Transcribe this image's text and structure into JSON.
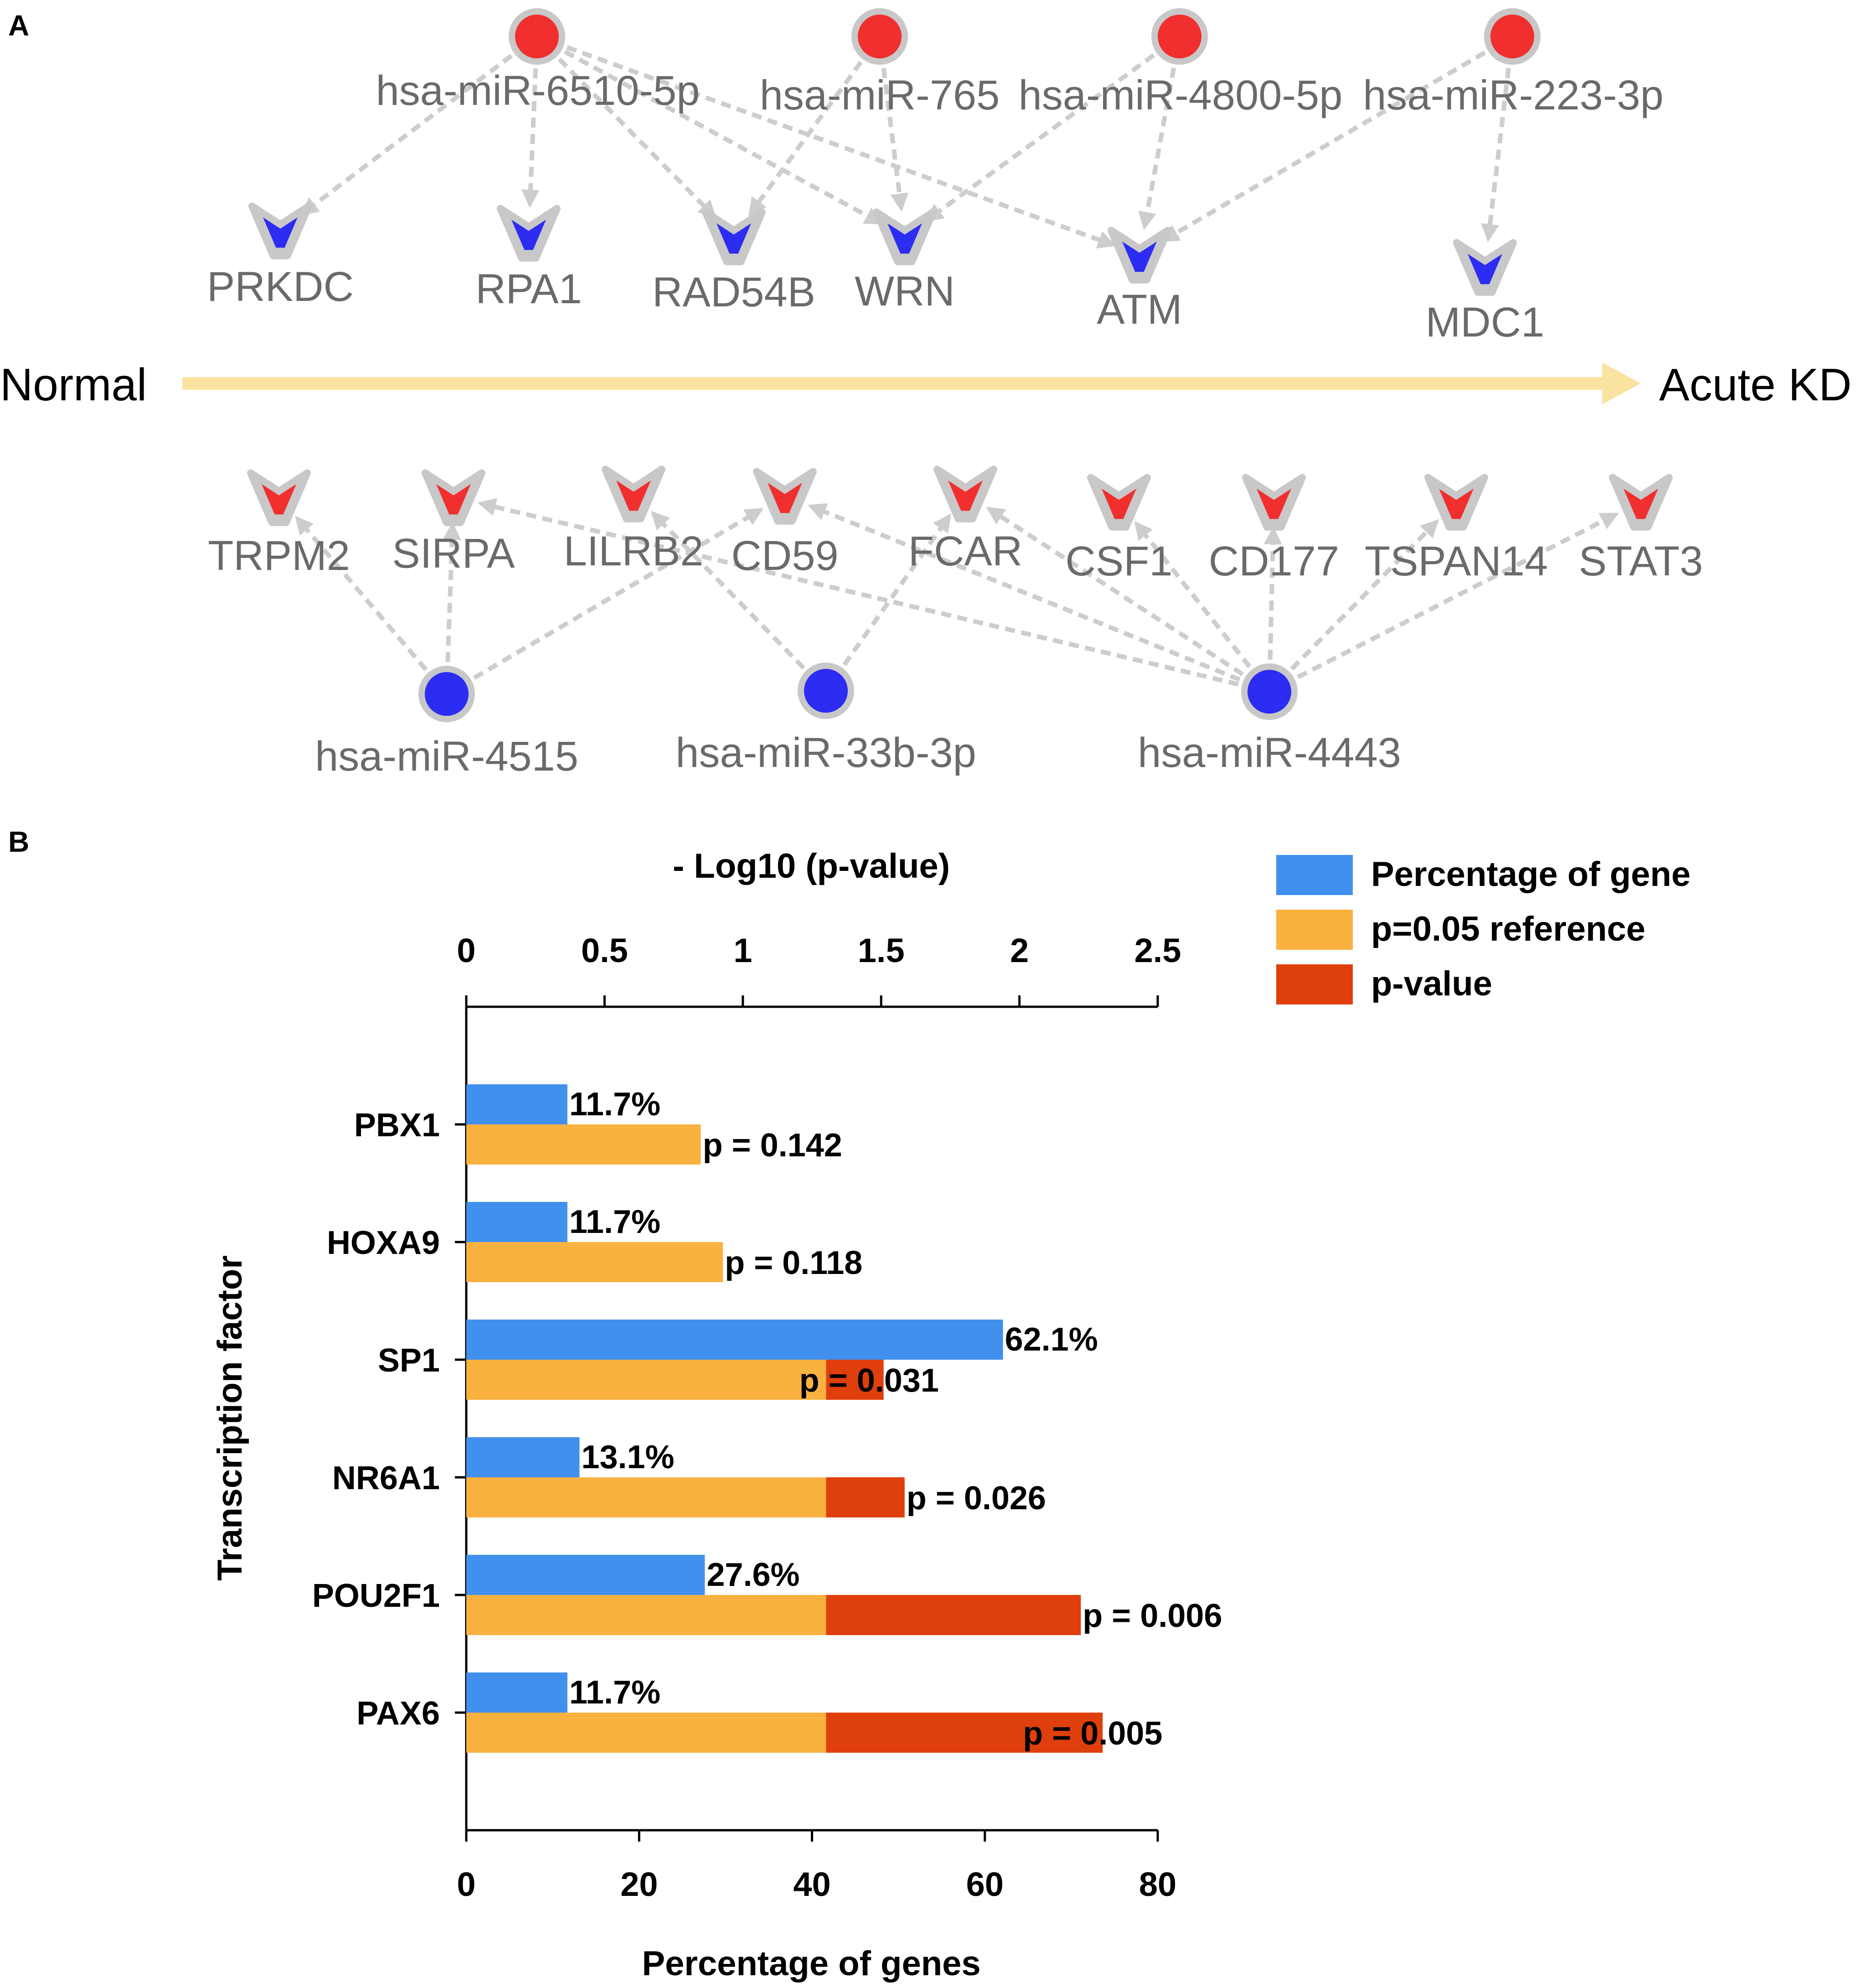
{
  "panel_a": {
    "letter": "A",
    "left_label": "Normal",
    "right_label": "Acute KD",
    "arrow_color": "#fae3a0",
    "up_mirnas": [
      {
        "id": "m6510",
        "label": "hsa-miR-6510-5p"
      },
      {
        "id": "m765",
        "label": "hsa-miR-765"
      },
      {
        "id": "m4800",
        "label": "hsa-miR-4800-5p"
      },
      {
        "id": "m223",
        "label": "hsa-miR-223-3p"
      }
    ],
    "down_genes": [
      {
        "id": "PRKDC",
        "label": "PRKDC"
      },
      {
        "id": "RPA1",
        "label": "RPA1"
      },
      {
        "id": "RAD54B",
        "label": "RAD54B"
      },
      {
        "id": "WRN",
        "label": "WRN"
      },
      {
        "id": "ATM",
        "label": "ATM"
      },
      {
        "id": "MDC1",
        "label": "MDC1"
      }
    ],
    "up_genes": [
      {
        "id": "TRPM2",
        "label": "TRPM2"
      },
      {
        "id": "SIRPA",
        "label": "SIRPA"
      },
      {
        "id": "LILRB2",
        "label": "LILRB2"
      },
      {
        "id": "CD59",
        "label": "CD59"
      },
      {
        "id": "FCAR",
        "label": "FCAR"
      },
      {
        "id": "CSF1",
        "label": "CSF1"
      },
      {
        "id": "CD177",
        "label": "CD177"
      },
      {
        "id": "TSPAN14",
        "label": "TSPAN14"
      },
      {
        "id": "STAT3",
        "label": "STAT3"
      }
    ],
    "down_mirnas": [
      {
        "id": "m4515",
        "label": "hsa-miR-4515"
      },
      {
        "id": "m33b",
        "label": "hsa-miR-33b-3p"
      },
      {
        "id": "m4443",
        "label": "hsa-miR-4443"
      }
    ],
    "edges": [
      [
        "m6510",
        "PRKDC"
      ],
      [
        "m6510",
        "RPA1"
      ],
      [
        "m6510",
        "RAD54B"
      ],
      [
        "m6510",
        "WRN"
      ],
      [
        "m6510",
        "ATM"
      ],
      [
        "m765",
        "RAD54B"
      ],
      [
        "m765",
        "WRN"
      ],
      [
        "m4800",
        "WRN"
      ],
      [
        "m4800",
        "ATM"
      ],
      [
        "m223",
        "ATM"
      ],
      [
        "m223",
        "MDC1"
      ],
      [
        "m4515",
        "TRPM2"
      ],
      [
        "m4515",
        "SIRPA"
      ],
      [
        "m4515",
        "CD59"
      ],
      [
        "m33b",
        "LILRB2"
      ],
      [
        "m33b",
        "FCAR"
      ],
      [
        "m4443",
        "SIRPA"
      ],
      [
        "m4443",
        "CD59"
      ],
      [
        "m4443",
        "FCAR"
      ],
      [
        "m4443",
        "CSF1"
      ],
      [
        "m4443",
        "CD177"
      ],
      [
        "m4443",
        "TSPAN14"
      ],
      [
        "m4443",
        "STAT3"
      ]
    ],
    "colors": {
      "up": "#f12f2f",
      "down": "#2c2cf2",
      "ring": "#c8c8c8"
    }
  },
  "panel_b": {
    "letter": "B",
    "legend": [
      {
        "label": "Percentage of gene",
        "color": "#4190ee"
      },
      {
        "label": "p=0.05 reference",
        "color": "#f9b140"
      },
      {
        "label": "p-value",
        "color": "#df3f0c"
      }
    ]
  },
  "chart_data": {
    "type": "bar",
    "orientation": "horizontal",
    "ylabel": "Transcription factor",
    "xlabel_bottom": "Percentage of genes",
    "xlabel_top": "- Log10 (p-value)",
    "bottom_ticks": [
      "0",
      "20",
      "40",
      "60",
      "80"
    ],
    "bottom_lim": [
      0,
      80
    ],
    "top_ticks": [
      "0",
      "0.5",
      "1",
      "1.5",
      "2",
      "2.5"
    ],
    "top_lim": [
      0,
      2.5
    ],
    "reference_log10": 1.301,
    "categories": [
      "PBX1",
      "HOXA9",
      "SP1",
      "NR6A1",
      "POU2F1",
      "PAX6"
    ],
    "series": [
      {
        "name": "Percentage of gene",
        "axis": "bottom",
        "values": [
          11.7,
          11.7,
          62.1,
          13.1,
          27.6,
          11.7
        ],
        "labels": [
          "11.7%",
          "11.7%",
          "62.1%",
          "13.1%",
          "27.6%",
          "11.7%"
        ]
      },
      {
        "name": "p-value",
        "axis": "top",
        "p_values": [
          0.142,
          0.118,
          0.031,
          0.026,
          0.006,
          0.005
        ],
        "log10_values": [
          0.848,
          0.928,
          1.509,
          1.585,
          2.222,
          2.301
        ],
        "labels": [
          "p = 0.142",
          "p = 0.118",
          "p = 0.031",
          "p = 0.026",
          "p = 0.006",
          "p = 0.005"
        ]
      }
    ]
  }
}
